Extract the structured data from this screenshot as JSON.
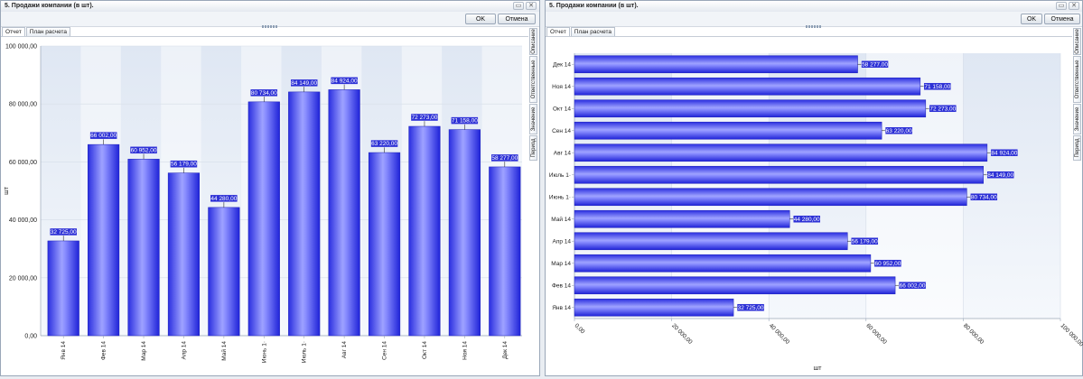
{
  "window_title": "5. Продажи компании (в шт).",
  "buttons": {
    "ok": "OK",
    "cancel": "Отмена"
  },
  "tabs": [
    "Отчет",
    "План расчета"
  ],
  "side_tabs": [
    "Описание",
    "Ответственные",
    "Значение",
    "Период"
  ],
  "chart_data": [
    {
      "type": "bar",
      "orientation": "vertical",
      "categories": [
        "Янв 14",
        "Фев 14",
        "Мар 14",
        "Апр 14",
        "Май 14",
        "Июнь 1·",
        "Июль 1·",
        "Авг 14",
        "Сен 14",
        "Окт 14",
        "Ноя 14",
        "Дек 14"
      ],
      "values": [
        32725,
        66002,
        60952,
        56179,
        44280,
        80734,
        84149,
        84924,
        63220,
        72273,
        71158,
        58277
      ],
      "data_labels": [
        "32 725,00",
        "66 002,00",
        "60 952,00",
        "56 179,00",
        "44 280,00",
        "80 734,00",
        "84 149,00",
        "84 924,00",
        "63 220,00",
        "72 273,00",
        "71 158,00",
        "58 277,00"
      ],
      "ylabel": "шт",
      "ylim": [
        0,
        100000
      ],
      "y_ticks": [
        0,
        20000,
        40000,
        60000,
        80000,
        100000
      ],
      "y_tick_labels": [
        "0,00",
        "20 000,00",
        "40 000,00",
        "60 000,00",
        "80 000,00",
        "100 000,00"
      ],
      "bar_color": "#3a3df0",
      "grid": true
    },
    {
      "type": "bar",
      "orientation": "horizontal",
      "categories": [
        "Дек 14",
        "Ноя 14",
        "Окт 14",
        "Сен 14",
        "Авг 14",
        "Июль 1·",
        "Июнь 1·",
        "Май 14",
        "Апр 14",
        "Мар 14",
        "Фев 14",
        "Янв 14"
      ],
      "values": [
        58277,
        71158,
        72273,
        63220,
        84924,
        84149,
        80734,
        44280,
        56179,
        60952,
        66002,
        32725
      ],
      "data_labels": [
        "58 277,00",
        "71 158,00",
        "72 273,00",
        "63 220,00",
        "84 924,00",
        "84 149,00",
        "80 734,00",
        "44 280,00",
        "56 179,00",
        "60 952,00",
        "66 002,00",
        "32 725,00"
      ],
      "xlabel": "шт",
      "xlim": [
        0,
        100000
      ],
      "x_ticks": [
        0,
        20000,
        40000,
        60000,
        80000,
        100000
      ],
      "x_tick_labels": [
        "0,00",
        "20 000,00",
        "40 000,00",
        "60 000,00",
        "80 000,00",
        "100 000,00"
      ],
      "bar_color": "#3a3df0",
      "grid": true
    }
  ]
}
